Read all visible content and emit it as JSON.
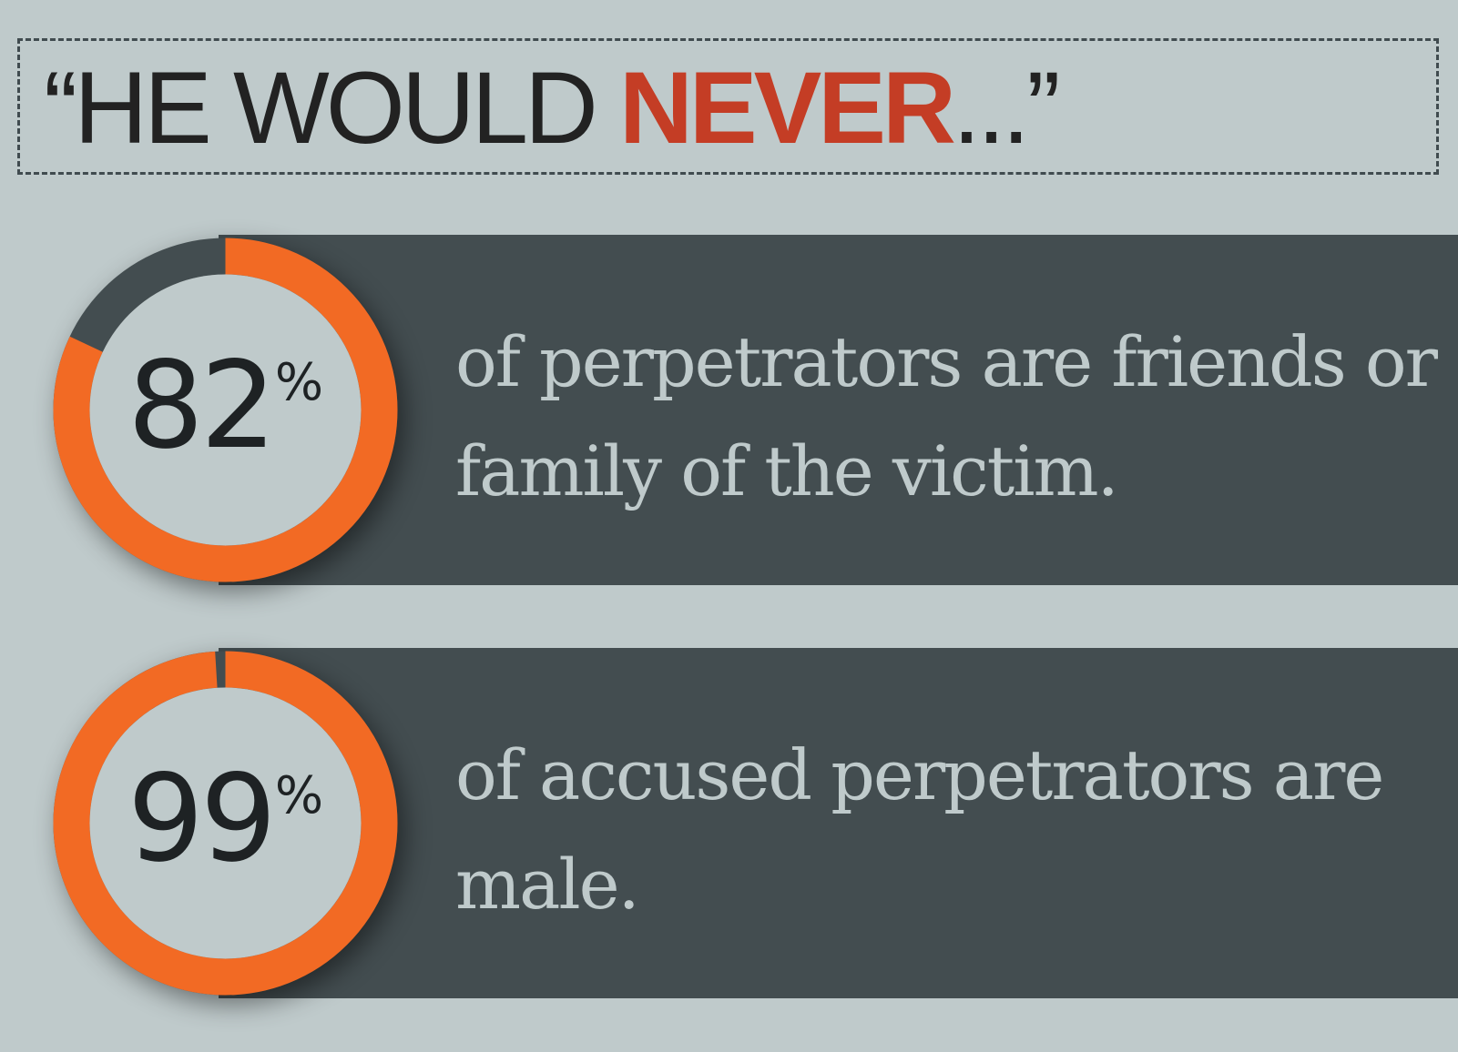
{
  "headline": {
    "open_quote": "“",
    "lead": "HE WOULD ",
    "emphasis": "NEVER",
    "trail": "...",
    "close_quote": "”"
  },
  "stats": [
    {
      "value": "82",
      "unit": "%",
      "percent": 82,
      "text": "of perpetrators are friends or family of the victim."
    },
    {
      "value": "99",
      "unit": "%",
      "percent": 99,
      "text": "of accused perpetrators are male."
    }
  ],
  "colors": {
    "background": "#bfcacb",
    "band": "#434d50",
    "ring_fill": "#f26a24",
    "ring_track": "#434d50",
    "headline_text": "#222222",
    "headline_emphasis": "#c43d25",
    "stat_text": "#bfcacb"
  }
}
